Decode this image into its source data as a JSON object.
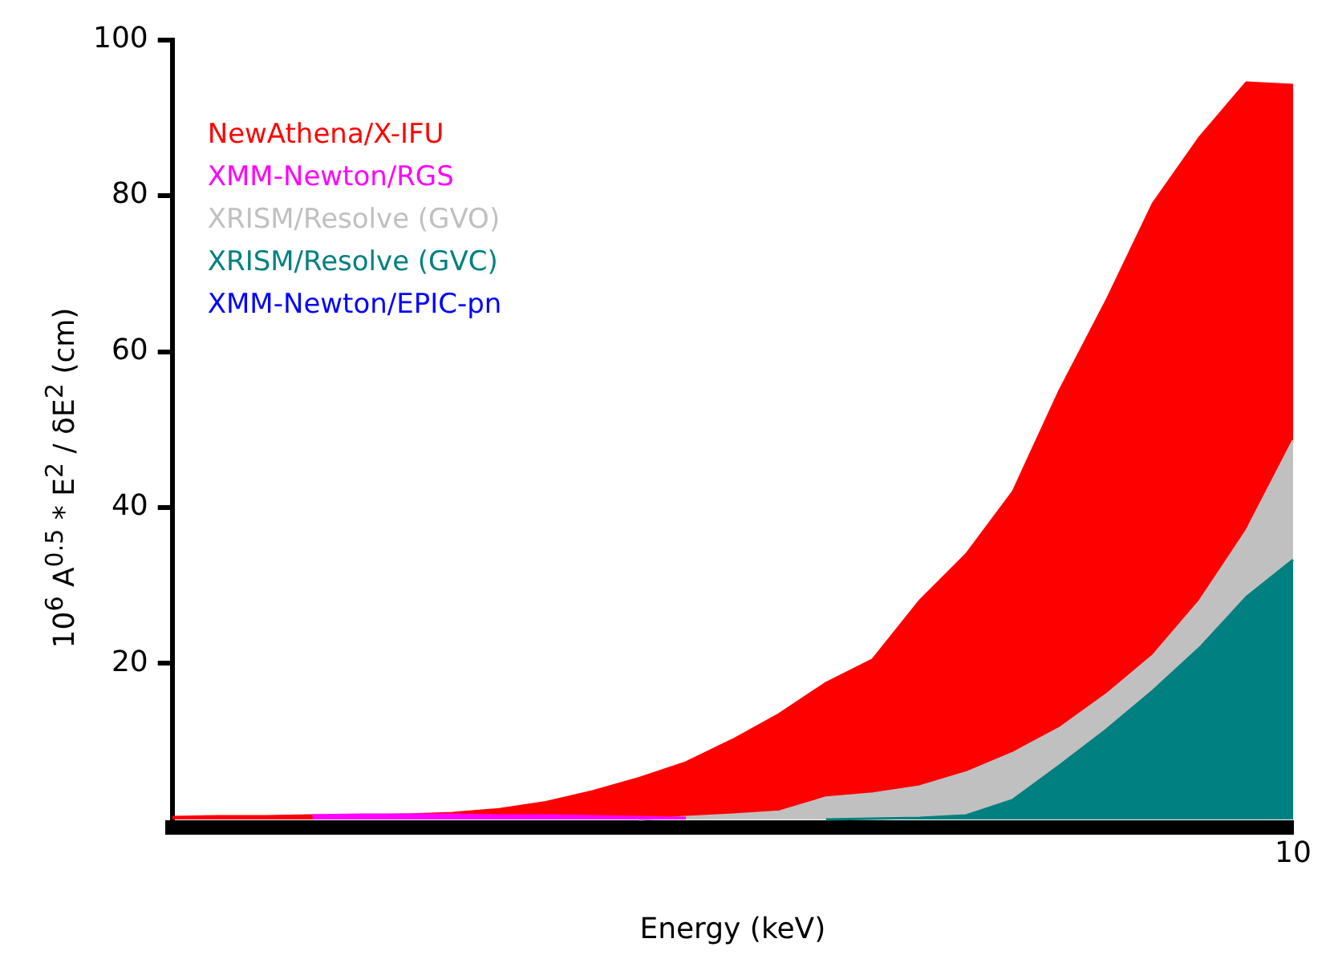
{
  "chart_data": {
    "type": "area",
    "xlabel": "Energy (keV)",
    "ylabel": "10$^{6}$ A$^{0.5}$ * E$^{2}$ / δE$^{2}$ (cm)",
    "ylim": [
      -1,
      100
    ],
    "categories": [
      null,
      null,
      null,
      null,
      null,
      null,
      null,
      null,
      null,
      null,
      null,
      null,
      null,
      null,
      null,
      null,
      null,
      null,
      null,
      null,
      null,
      null,
      null,
      null,
      null
    ],
    "yticks": [
      20,
      40,
      60,
      80,
      100
    ],
    "grid": false,
    "legend": "top left",
    "annotations": [
      "10"
    ],
    "series": [
      {
        "name": "NewAthena/X-IFU",
        "color": "#ff0000",
        "values": [
          0.3,
          0.4,
          0.4,
          0.5,
          0.5,
          0.6,
          0.8,
          1.3,
          2.2,
          3.6,
          5.3,
          7.3,
          10.2,
          13.5,
          17.5,
          20.5,
          28,
          34,
          42,
          55,
          66.5,
          79,
          87.5,
          94.5,
          94.2
        ]
      },
      {
        "name": "XMM-Newton/RGS",
        "color": "#ff00ff",
        "values": [
          null,
          null,
          null,
          0.5,
          0.6,
          0.6,
          0.6,
          0.5,
          0.5,
          0.4,
          0.3,
          0.2,
          null,
          null,
          null,
          null,
          null,
          null,
          null,
          null,
          null,
          null,
          null,
          null,
          null
        ]
      },
      {
        "name": "XRISM/Resolve (GVO)",
        "color": "#c0c0c0",
        "values": [
          null,
          null,
          null,
          null,
          null,
          null,
          null,
          null,
          null,
          null,
          0,
          0.3,
          0.6,
          1,
          2.8,
          3.3,
          4.2,
          6,
          8.5,
          11.7,
          16,
          21,
          28,
          37,
          48.6
        ]
      },
      {
        "name": "XRISM/Resolve (GVC)",
        "color": "#008080",
        "values": [
          null,
          null,
          null,
          null,
          null,
          null,
          null,
          null,
          null,
          null,
          null,
          null,
          null,
          null,
          0,
          0.1,
          0.2,
          0.5,
          2.5,
          6.9,
          11.5,
          16.5,
          22,
          28.5,
          33.3
        ]
      },
      {
        "name": "XMM-Newton/EPIC-pn",
        "color": "#0000ff",
        "values": [
          null,
          null,
          null,
          null,
          null,
          null,
          null,
          null,
          null,
          null,
          null,
          null,
          null,
          null,
          null,
          null,
          null,
          null,
          null,
          null,
          null,
          null,
          null,
          null,
          null
        ]
      }
    ]
  }
}
